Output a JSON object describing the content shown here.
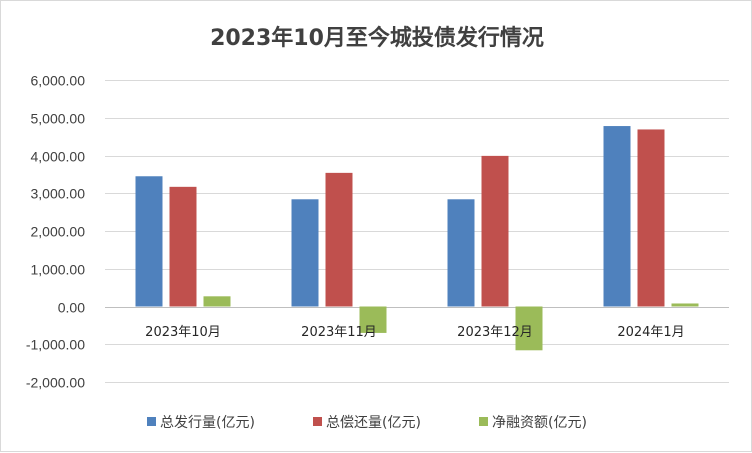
{
  "chart_data": {
    "type": "bar",
    "title": "2023年10月至今城投债发行情况",
    "categories": [
      "2023年10月",
      "2023年11月",
      "2023年12月",
      "2024年1月"
    ],
    "series": [
      {
        "name": "总发行量(亿元)",
        "color": "#4f81bd",
        "values": [
          3450,
          2840,
          2840,
          4780
        ]
      },
      {
        "name": "总偿还量(亿元)",
        "color": "#c0504d",
        "values": [
          3170,
          3540,
          3990,
          4690
        ]
      },
      {
        "name": "净融资额(亿元)",
        "color": "#9bbb59",
        "values": [
          270,
          -700,
          -1160,
          80
        ]
      }
    ],
    "ylim": [
      -2000,
      6000
    ],
    "yticks": [
      "6,000.00",
      "5,000.00",
      "4,000.00",
      "3,000.00",
      "2,000.00",
      "1,000.00",
      "0.00",
      "-1,000.00",
      "-2,000.00"
    ],
    "ytick_values": [
      6000,
      5000,
      4000,
      3000,
      2000,
      1000,
      0,
      -1000,
      -2000
    ],
    "grid": true,
    "legend_position": "bottom"
  }
}
